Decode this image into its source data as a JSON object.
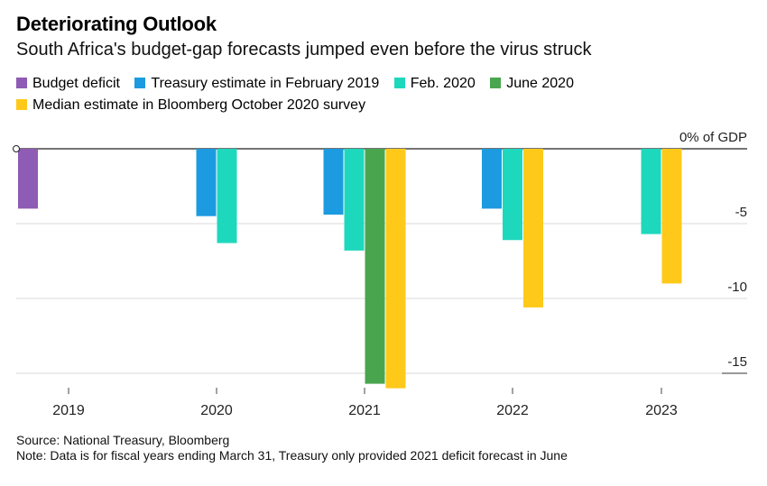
{
  "header": {
    "title": "Deteriorating Outlook",
    "subtitle": "South Africa's budget-gap forecasts jumped even before the virus struck"
  },
  "legend": [
    {
      "label": "Budget deficit",
      "color": "#8e5bb5"
    },
    {
      "label": "Treasury estimate in February 2019",
      "color": "#1c9be0"
    },
    {
      "label": "Feb. 2020",
      "color": "#1ed8bd"
    },
    {
      "label": "June 2020",
      "color": "#4aa64e"
    },
    {
      "label": "Median estimate in Bloomberg October 2020 survey",
      "color": "#ffc91a"
    }
  ],
  "footer": {
    "source": "Source: National Treasury, Bloomberg",
    "note": "Note: Data is for fiscal years ending March 31, Treasury only provided 2021 deficit forecast in June"
  },
  "chart_data": {
    "type": "bar",
    "title": "Deteriorating Outlook",
    "subtitle": "South Africa's budget-gap forecasts jumped even before the virus struck",
    "categories": [
      "2019",
      "2020",
      "2021",
      "2022",
      "2023"
    ],
    "y_unit_label": "0% of GDP",
    "yticks": [
      {
        "value": 0,
        "label": "0% of GDP"
      },
      {
        "value": -5,
        "label": "-5"
      },
      {
        "value": -10,
        "label": "-10"
      },
      {
        "value": -15,
        "label": "-15"
      }
    ],
    "ylim": [
      -16,
      0
    ],
    "grid": true,
    "legend_position": "top",
    "series": [
      {
        "name": "Budget deficit",
        "color": "#8e5bb5",
        "values": [
          -4.0,
          null,
          null,
          null,
          null
        ]
      },
      {
        "name": "Treasury estimate in February 2019",
        "color": "#1c9be0",
        "values": [
          null,
          -4.5,
          -4.4,
          -4.0,
          null
        ]
      },
      {
        "name": "Feb. 2020",
        "color": "#1ed8bd",
        "values": [
          null,
          -6.3,
          -6.8,
          -6.1,
          -5.7
        ]
      },
      {
        "name": "June 2020",
        "color": "#4aa64e",
        "values": [
          null,
          null,
          -15.7,
          null,
          null
        ]
      },
      {
        "name": "Median estimate in Bloomberg October 2020 survey",
        "color": "#ffc91a",
        "values": [
          null,
          null,
          -16.0,
          -10.6,
          -9.0
        ]
      }
    ]
  }
}
